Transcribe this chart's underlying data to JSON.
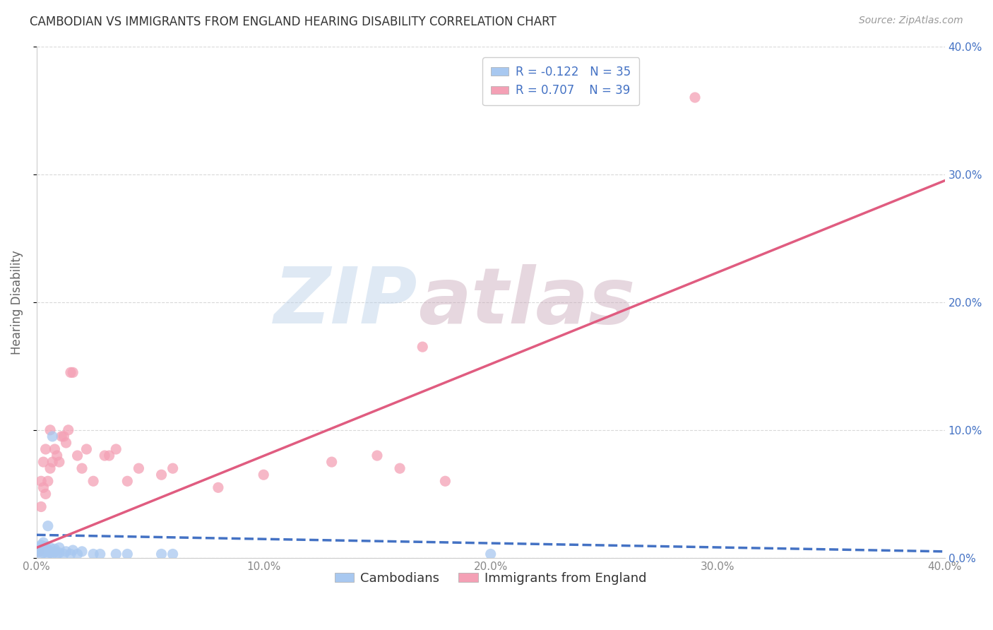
{
  "title": "CAMBODIAN VS IMMIGRANTS FROM ENGLAND HEARING DISABILITY CORRELATION CHART",
  "source": "Source: ZipAtlas.com",
  "ylabel": "Hearing Disability",
  "xlim": [
    0.0,
    0.4
  ],
  "ylim": [
    0.0,
    0.4
  ],
  "ticks": [
    0.0,
    0.1,
    0.2,
    0.3,
    0.4
  ],
  "tick_labels": [
    "0.0%",
    "10.0%",
    "20.0%",
    "30.0%",
    "40.0%"
  ],
  "ytick_labels_left": [
    "",
    "",
    "",
    "",
    ""
  ],
  "cambodian_color": "#a8c8f0",
  "england_color": "#f4a0b5",
  "cambodian_line_color": "#4472c4",
  "england_line_color": "#e05c80",
  "R_cambodian": -0.122,
  "N_cambodian": 35,
  "R_england": 0.707,
  "N_england": 39,
  "watermark_zip": "ZIP",
  "watermark_atlas": "atlas",
  "background_color": "#ffffff",
  "grid_color": "#d0d0d0",
  "legend_label_color": "#4472c4",
  "legend_text_color": "#333333",
  "right_axis_color": "#4472c4",
  "cambodian_x": [
    0.001,
    0.001,
    0.002,
    0.002,
    0.002,
    0.003,
    0.003,
    0.003,
    0.004,
    0.004,
    0.005,
    0.005,
    0.005,
    0.006,
    0.006,
    0.007,
    0.007,
    0.008,
    0.008,
    0.009,
    0.01,
    0.01,
    0.012,
    0.013,
    0.015,
    0.016,
    0.018,
    0.02,
    0.025,
    0.028,
    0.035,
    0.04,
    0.055,
    0.06,
    0.2
  ],
  "cambodian_y": [
    0.005,
    0.008,
    0.003,
    0.006,
    0.01,
    0.004,
    0.007,
    0.012,
    0.005,
    0.009,
    0.003,
    0.006,
    0.025,
    0.004,
    0.008,
    0.003,
    0.095,
    0.005,
    0.007,
    0.003,
    0.004,
    0.008,
    0.003,
    0.005,
    0.003,
    0.006,
    0.003,
    0.005,
    0.003,
    0.003,
    0.003,
    0.003,
    0.003,
    0.003,
    0.003
  ],
  "england_x": [
    0.001,
    0.002,
    0.002,
    0.003,
    0.003,
    0.004,
    0.004,
    0.005,
    0.006,
    0.006,
    0.007,
    0.008,
    0.009,
    0.01,
    0.011,
    0.012,
    0.013,
    0.014,
    0.015,
    0.016,
    0.018,
    0.02,
    0.022,
    0.025,
    0.03,
    0.032,
    0.035,
    0.04,
    0.045,
    0.055,
    0.06,
    0.08,
    0.1,
    0.13,
    0.15,
    0.16,
    0.17,
    0.18,
    0.29
  ],
  "england_y": [
    0.005,
    0.04,
    0.06,
    0.055,
    0.075,
    0.05,
    0.085,
    0.06,
    0.07,
    0.1,
    0.075,
    0.085,
    0.08,
    0.075,
    0.095,
    0.095,
    0.09,
    0.1,
    0.145,
    0.145,
    0.08,
    0.07,
    0.085,
    0.06,
    0.08,
    0.08,
    0.085,
    0.06,
    0.07,
    0.065,
    0.07,
    0.055,
    0.065,
    0.075,
    0.08,
    0.07,
    0.165,
    0.06,
    0.36
  ],
  "cambodian_line_x": [
    0.0,
    0.4
  ],
  "cambodian_line_y": [
    0.018,
    0.005
  ],
  "england_line_x": [
    0.0,
    0.4
  ],
  "england_line_y": [
    0.008,
    0.295
  ]
}
